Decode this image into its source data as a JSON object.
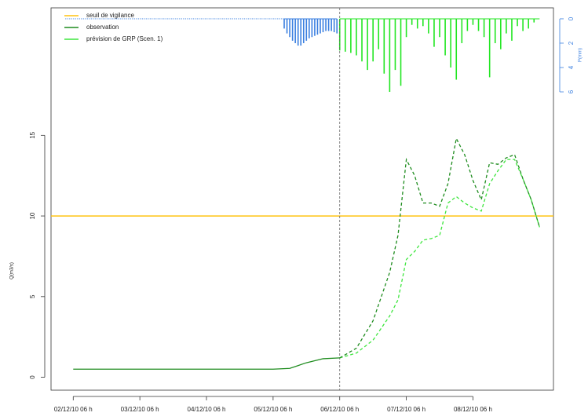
{
  "chart_data": {
    "type": "line",
    "ylabel": "Q(m3/s)",
    "y2label": "P(mm)",
    "xlim": [
      "2010-12-01 22:00",
      "2010-12-09 11:00"
    ],
    "xticks": [
      {
        "value": "2010-12-02 06:00",
        "label": "02/12/10 06 h"
      },
      {
        "value": "2010-12-03 06:00",
        "label": "03/12/10 06 h"
      },
      {
        "value": "2010-12-04 06:00",
        "label": "04/12/10 06 h"
      },
      {
        "value": "2010-12-05 06:00",
        "label": "05/12/10 06 h"
      },
      {
        "value": "2010-12-06 06:00",
        "label": "06/12/10 06 h"
      },
      {
        "value": "2010-12-07 06:00",
        "label": "07/12/10 06 h"
      },
      {
        "value": "2010-12-08 06:00",
        "label": "08/12/10 06 h"
      }
    ],
    "ylim": [
      -0.8,
      22.9
    ],
    "yticks": [
      0,
      5,
      10,
      15
    ],
    "y2lim": [
      30.5,
      -0.9
    ],
    "y2ticks": [
      0,
      2,
      4,
      6
    ],
    "forecast_start": "2010-12-06 06:00",
    "threshold": {
      "name": "seuil de vigilance",
      "value": 10,
      "color": "#ffc20e"
    },
    "series": [
      {
        "name": "observation",
        "color": "#1e8c1e",
        "dash": false,
        "x": [
          "2010-12-02 06:00",
          "2010-12-05 06:00",
          "2010-12-05 12:00",
          "2010-12-05 18:00",
          "2010-12-06 00:00",
          "2010-12-06 06:00"
        ],
        "values": [
          0.5,
          0.5,
          0.55,
          0.9,
          1.15,
          1.2
        ]
      },
      {
        "name": "prévision de GRP (Scen. 1)",
        "color": "#3ee63e",
        "dash": true,
        "x": [
          "2010-12-06 06:00",
          "2010-12-06 12:00",
          "2010-12-06 18:00",
          "2010-12-07 00:00",
          "2010-12-07 03:00",
          "2010-12-07 06:00",
          "2010-12-07 09:00",
          "2010-12-07 12:00",
          "2010-12-07 15:00",
          "2010-12-07 18:00",
          "2010-12-07 21:00",
          "2010-12-08 00:00",
          "2010-12-08 03:00",
          "2010-12-08 06:00",
          "2010-12-08 09:00",
          "2010-12-08 12:00",
          "2010-12-08 15:00",
          "2010-12-08 18:00",
          "2010-12-08 21:00",
          "2010-12-09 00:00",
          "2010-12-09 03:00",
          "2010-12-09 06:00"
        ],
        "values": [
          1.2,
          1.5,
          2.3,
          3.8,
          4.8,
          7.3,
          7.8,
          8.5,
          8.6,
          8.8,
          10.8,
          11.2,
          10.8,
          10.5,
          10.3,
          12.0,
          12.8,
          13.5,
          13.5,
          12.3,
          11.0,
          9.3
        ]
      },
      {
        "color": "#1e8c1e",
        "dash": true,
        "x": [
          "2010-12-06 06:00",
          "2010-12-06 12:00",
          "2010-12-06 18:00",
          "2010-12-07 00:00",
          "2010-12-07 03:00",
          "2010-12-07 06:00",
          "2010-12-07 09:00",
          "2010-12-07 12:00",
          "2010-12-07 15:00",
          "2010-12-07 18:00",
          "2010-12-07 21:00",
          "2010-12-08 00:00",
          "2010-12-08 03:00",
          "2010-12-08 06:00",
          "2010-12-08 09:00",
          "2010-12-08 12:00",
          "2010-12-08 15:00",
          "2010-12-08 18:00",
          "2010-12-08 21:00",
          "2010-12-09 00:00",
          "2010-12-09 03:00",
          "2010-12-09 06:00"
        ],
        "values": [
          1.2,
          1.8,
          3.5,
          6.5,
          8.8,
          13.5,
          12.5,
          10.8,
          10.8,
          10.6,
          12.0,
          14.8,
          13.8,
          12.2,
          11.0,
          13.3,
          13.2,
          13.6,
          13.8,
          12.3,
          11.0,
          9.3
        ]
      }
    ],
    "rain": [
      {
        "color": "#3a7fe0",
        "x": [
          "2010-12-05 10:00",
          "2010-12-05 11:00",
          "2010-12-05 12:00",
          "2010-12-05 13:00",
          "2010-12-05 14:00",
          "2010-12-05 15:00",
          "2010-12-05 16:00",
          "2010-12-05 17:00",
          "2010-12-05 18:00",
          "2010-12-05 19:00",
          "2010-12-05 20:00",
          "2010-12-05 21:00",
          "2010-12-05 22:00",
          "2010-12-05 23:00",
          "2010-12-06 00:00",
          "2010-12-06 01:00",
          "2010-12-06 02:00",
          "2010-12-06 03:00",
          "2010-12-06 04:00",
          "2010-12-06 05:00"
        ],
        "values": [
          0.8,
          1.2,
          1.5,
          1.8,
          2.0,
          2.2,
          2.2,
          2.0,
          1.8,
          1.6,
          1.5,
          1.4,
          1.3,
          1.2,
          1.1,
          1.0,
          1.0,
          1.0,
          1.1,
          1.2
        ]
      },
      {
        "color": "#22e622",
        "x": [
          "2010-12-06 06:00",
          "2010-12-06 08:00",
          "2010-12-06 10:00",
          "2010-12-06 12:00",
          "2010-12-06 14:00",
          "2010-12-06 16:00",
          "2010-12-06 18:00",
          "2010-12-06 20:00",
          "2010-12-06 22:00",
          "2010-12-07 00:00",
          "2010-12-07 02:00",
          "2010-12-07 04:00",
          "2010-12-07 06:00",
          "2010-12-07 08:00",
          "2010-12-07 10:00",
          "2010-12-07 12:00",
          "2010-12-07 14:00",
          "2010-12-07 16:00",
          "2010-12-07 18:00",
          "2010-12-07 20:00",
          "2010-12-07 22:00",
          "2010-12-08 00:00",
          "2010-12-08 02:00",
          "2010-12-08 04:00",
          "2010-12-08 06:00",
          "2010-12-08 08:00",
          "2010-12-08 10:00",
          "2010-12-08 12:00",
          "2010-12-08 14:00",
          "2010-12-08 16:00",
          "2010-12-08 18:00",
          "2010-12-08 20:00",
          "2010-12-08 22:00",
          "2010-12-09 00:00",
          "2010-12-09 02:00",
          "2010-12-09 04:00",
          "2010-12-09 06:00"
        ],
        "values": [
          2.6,
          2.7,
          2.8,
          3.0,
          3.5,
          4.2,
          3.5,
          2.5,
          4.5,
          6.0,
          4.2,
          5.5,
          1.5,
          0.5,
          0.8,
          0.6,
          1.2,
          2.3,
          1.5,
          3.0,
          4.0,
          5.0,
          2.0,
          1.0,
          0.5,
          1.0,
          1.5,
          4.8,
          2.0,
          2.5,
          1.2,
          1.8,
          0.6,
          1.0,
          0.8,
          0.3,
          0.0
        ]
      }
    ]
  }
}
